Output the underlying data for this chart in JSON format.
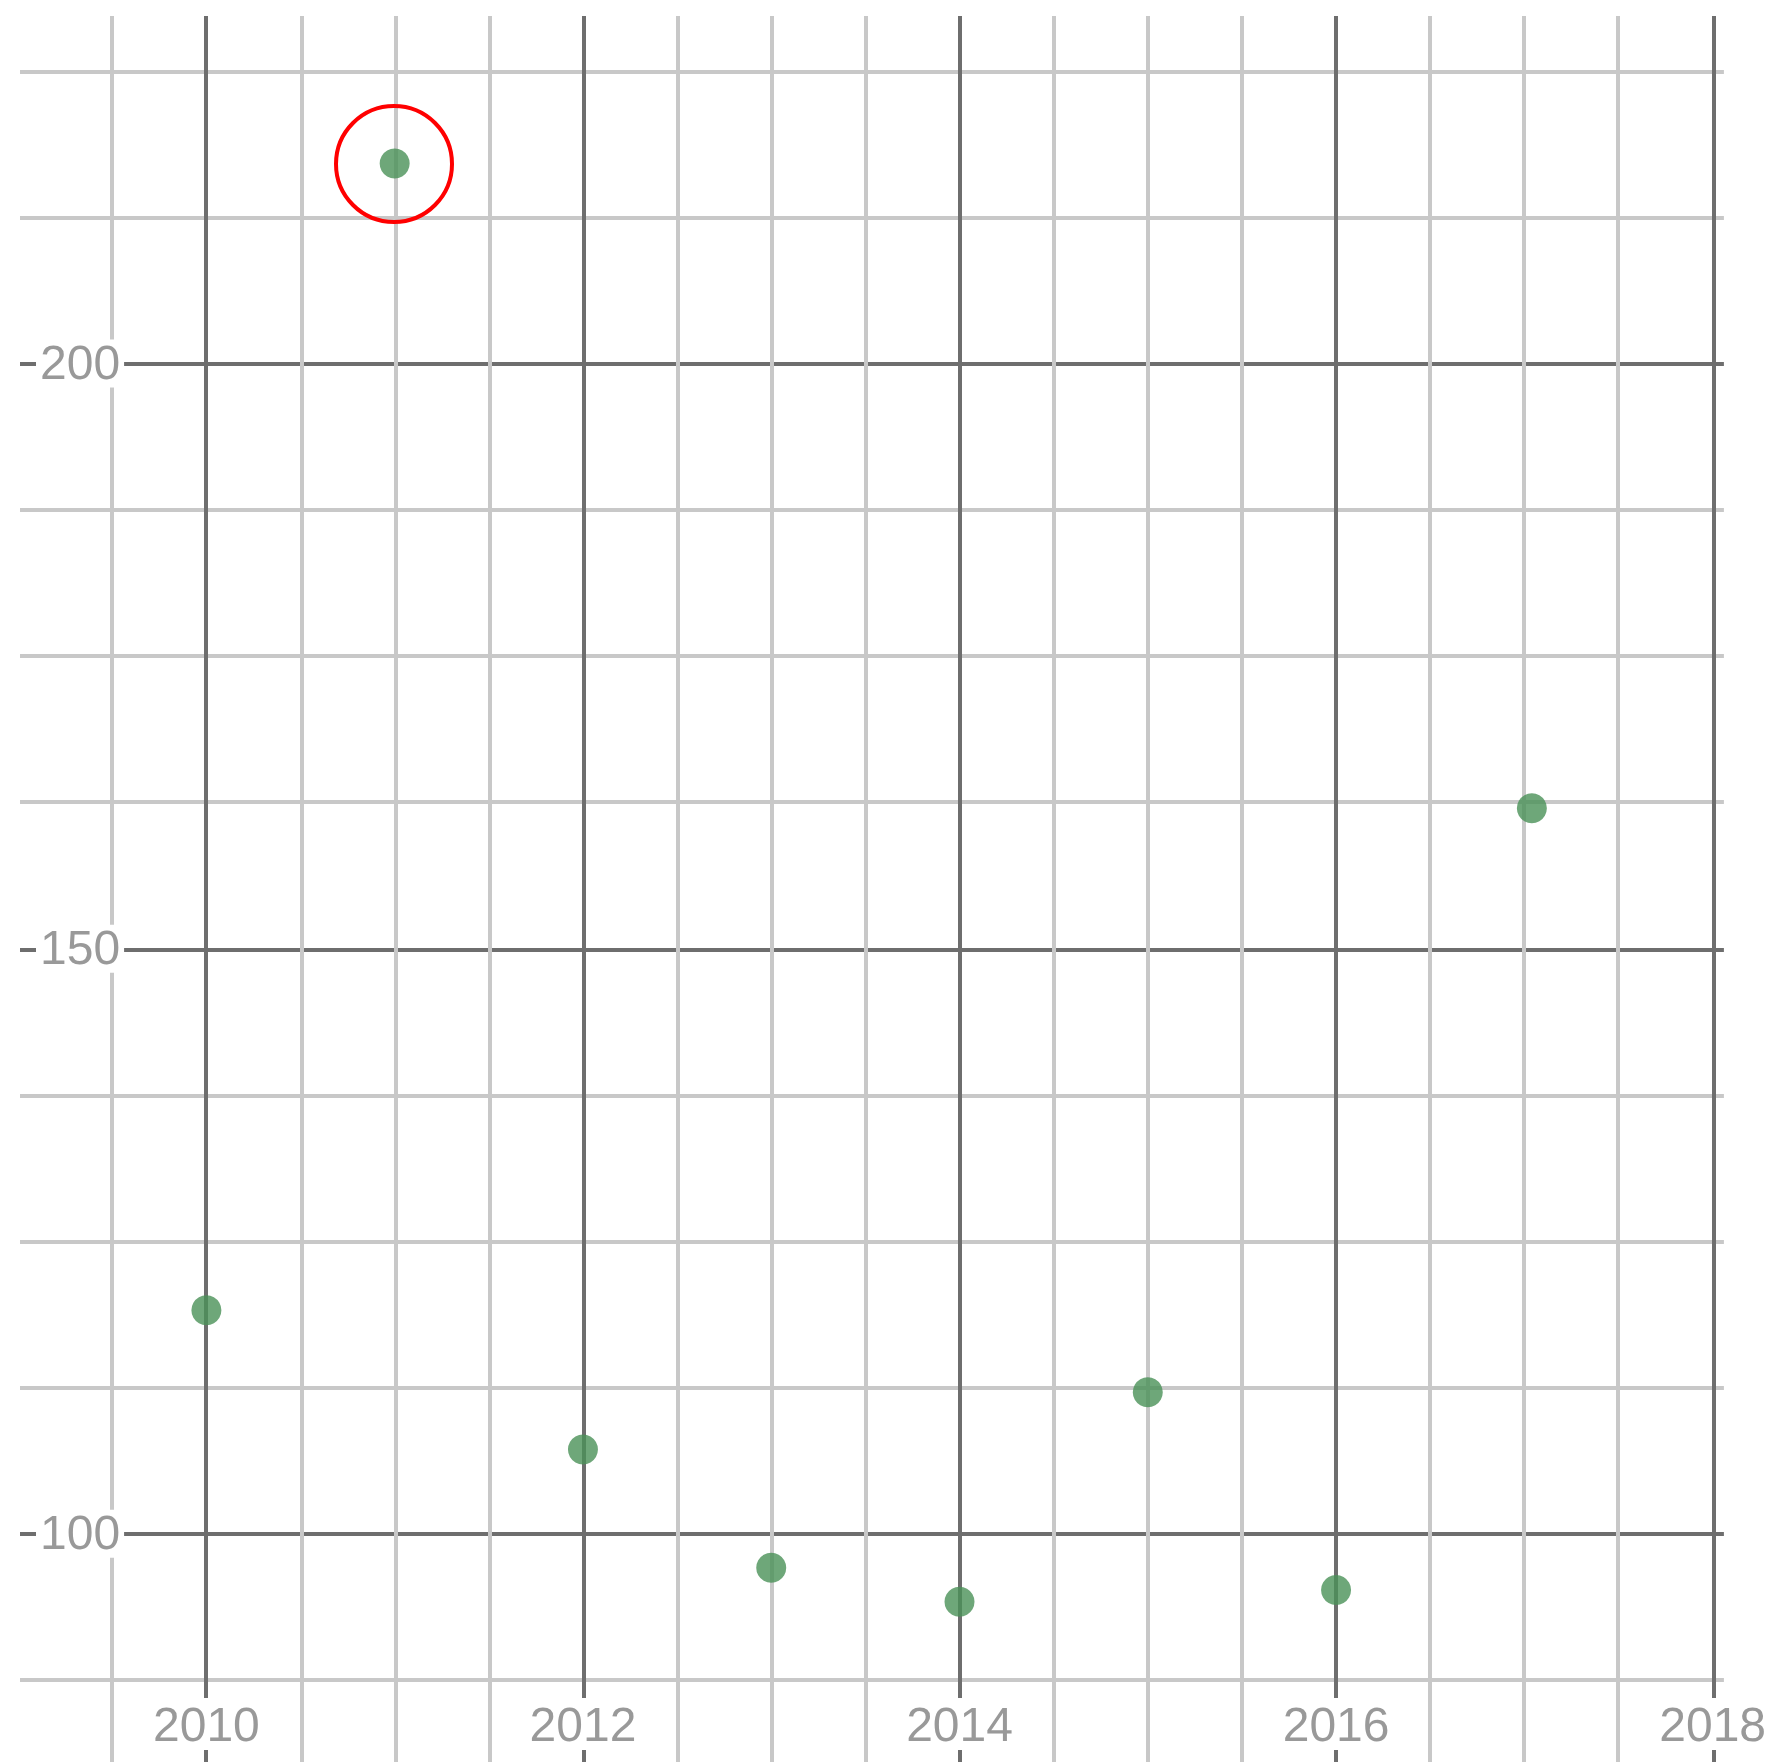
{
  "chart_data": {
    "type": "scatter",
    "x": [
      2010,
      2011,
      2012,
      2013,
      2014,
      2015,
      2016,
      2017.04
    ],
    "series": [
      {
        "color": "#4a9157",
        "values": [
          119.1,
          217.1,
          107.2,
          97.1,
          94.2,
          112.1,
          95.2,
          162.0
        ]
      }
    ],
    "xlim": [
      2009.01,
      2018.06
    ],
    "xticks": [
      {
        "value": 2009.5,
        "label": null
      },
      2010,
      {
        "value": 2010.5,
        "label": null
      },
      {
        "value": 2011,
        "label": null
      },
      {
        "value": 2011.5,
        "label": null
      },
      2012,
      {
        "value": 2012.5,
        "label": null
      },
      {
        "value": 2013,
        "label": null
      },
      {
        "value": 2013.5,
        "label": null
      },
      2014,
      {
        "value": 2014.5,
        "label": null
      },
      {
        "value": 2015,
        "label": null
      },
      {
        "value": 2015.5,
        "label": null
      },
      2016,
      {
        "value": 2016.5,
        "label": null
      },
      {
        "value": 2017,
        "label": null
      },
      {
        "value": 2017.5,
        "label": null
      },
      2018
    ],
    "ylim": [
      80.5,
      229.7
    ],
    "yticks": [
      {
        "value": 87.5,
        "label": null
      },
      100,
      {
        "value": 112.5,
        "label": null
      },
      {
        "value": 125,
        "label": null
      },
      {
        "value": 137.5,
        "label": null
      },
      150,
      {
        "value": 162.5,
        "label": null
      },
      {
        "value": 175,
        "label": null
      },
      {
        "value": 187.5,
        "label": null
      },
      200,
      {
        "value": 212.5,
        "label": null
      },
      {
        "value": 225,
        "label": null
      }
    ],
    "grid": true,
    "marker": "circle"
  }
}
